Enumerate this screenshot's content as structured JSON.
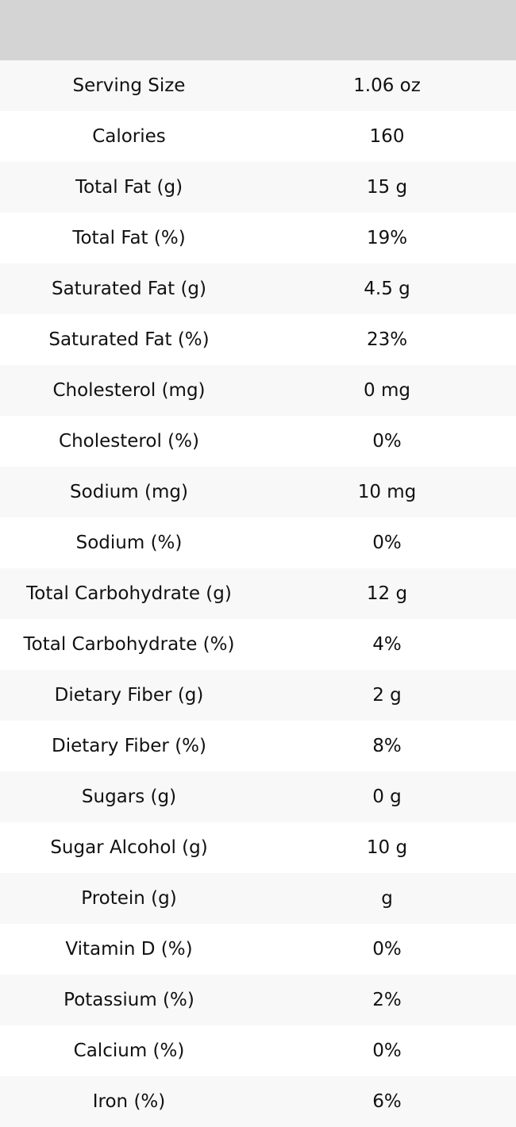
{
  "header": {
    "title": ""
  },
  "rows": [
    {
      "label": "Serving Size",
      "value": "1.06 oz"
    },
    {
      "label": "Calories",
      "value": "160"
    },
    {
      "label": "Total Fat (g)",
      "value": "15 g"
    },
    {
      "label": "Total Fat (%)",
      "value": "19%"
    },
    {
      "label": "Saturated Fat (g)",
      "value": "4.5 g"
    },
    {
      "label": "Saturated Fat (%)",
      "value": "23%"
    },
    {
      "label": "Cholesterol (mg)",
      "value": "0 mg"
    },
    {
      "label": "Cholesterol (%)",
      "value": "0%"
    },
    {
      "label": "Sodium (mg)",
      "value": "10 mg"
    },
    {
      "label": "Sodium (%)",
      "value": "0%"
    },
    {
      "label": "Total Carbohydrate (g)",
      "value": "12 g"
    },
    {
      "label": "Total Carbohydrate (%)",
      "value": "4%"
    },
    {
      "label": "Dietary Fiber (g)",
      "value": "2 g"
    },
    {
      "label": "Dietary Fiber (%)",
      "value": "8%"
    },
    {
      "label": "Sugars (g)",
      "value": "0 g"
    },
    {
      "label": "Sugar Alcohol (g)",
      "value": "10 g"
    },
    {
      "label": "Protein (g)",
      "value": "g"
    },
    {
      "label": "Vitamin D (%)",
      "value": "0%"
    },
    {
      "label": "Potassium (%)",
      "value": "2%"
    },
    {
      "label": "Calcium (%)",
      "value": "0%"
    },
    {
      "label": "Iron (%)",
      "value": "6%"
    }
  ]
}
